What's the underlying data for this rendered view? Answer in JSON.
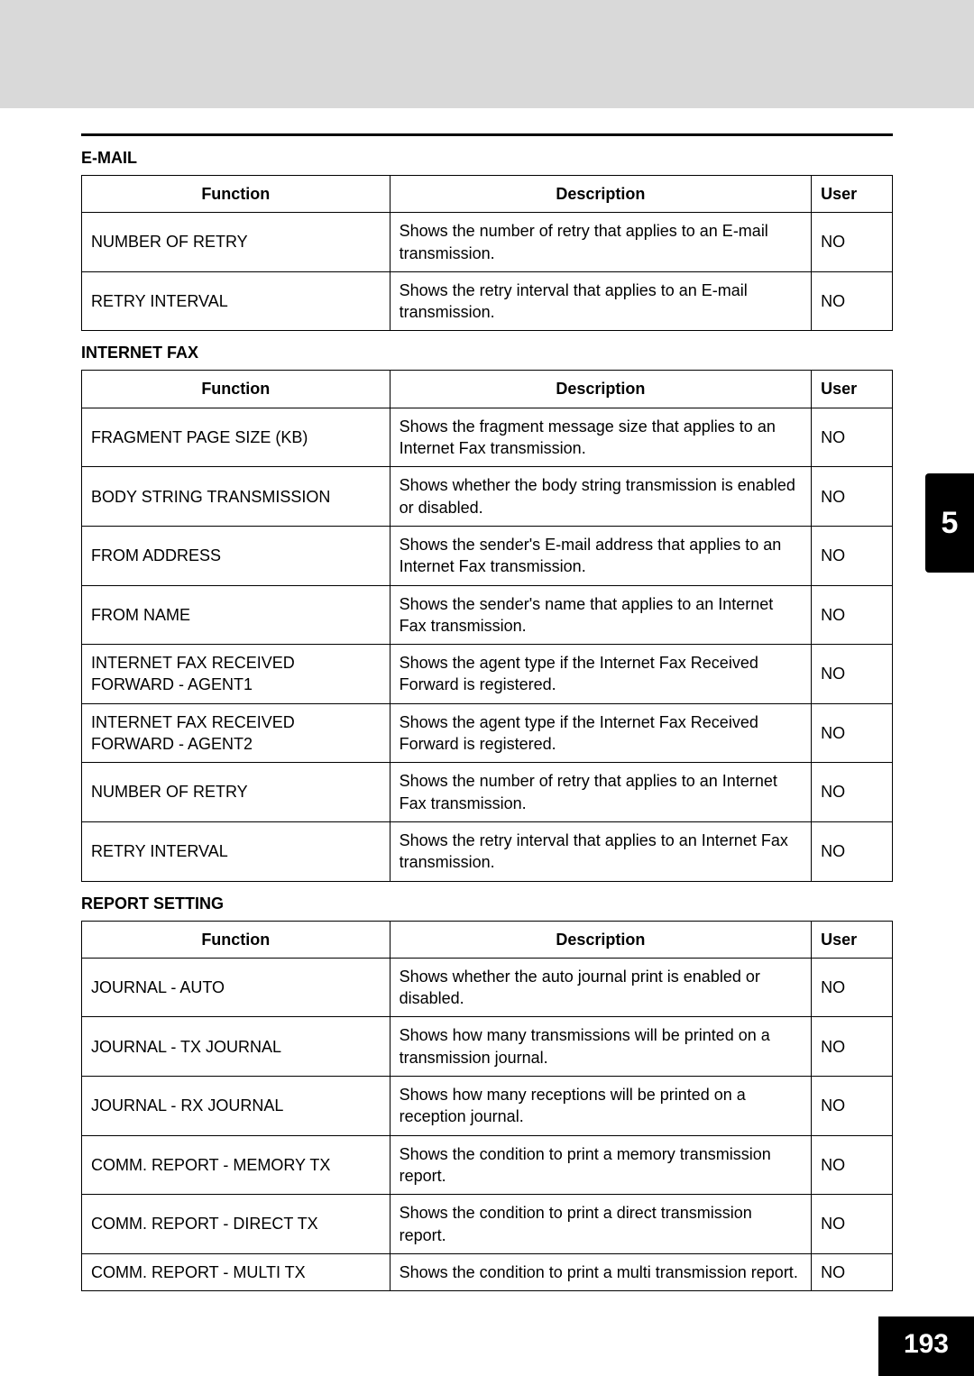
{
  "page": {
    "side_tab": "5",
    "page_number": "193"
  },
  "columns": {
    "function": "Function",
    "description": "Description",
    "user": "User"
  },
  "sections": [
    {
      "title": "E-MAIL",
      "rows": [
        {
          "function": "NUMBER OF RETRY",
          "description": "Shows the number of retry that applies to an E-mail transmission.",
          "user": "NO"
        },
        {
          "function": "RETRY INTERVAL",
          "description": "Shows the retry interval that applies to an E-mail transmission.",
          "user": "NO"
        }
      ]
    },
    {
      "title": "INTERNET FAX",
      "rows": [
        {
          "function": "FRAGMENT PAGE SIZE (KB)",
          "description": "Shows the fragment message size that applies to an Internet Fax transmission.",
          "user": "NO"
        },
        {
          "function": "BODY STRING TRANSMISSION",
          "description": "Shows whether the body string transmission is enabled or disabled.",
          "user": "NO"
        },
        {
          "function": "FROM ADDRESS",
          "description": "Shows the sender's E-mail address that applies to an Internet Fax transmission.",
          "user": "NO"
        },
        {
          "function": "FROM NAME",
          "description": "Shows the sender's name that applies to an Internet Fax transmission.",
          "user": "NO"
        },
        {
          "function": "INTERNET FAX RECEIVED FORWARD - AGENT1",
          "description": "Shows the agent type if the Internet Fax Received Forward is registered.",
          "user": "NO"
        },
        {
          "function": "INTERNET FAX RECEIVED FORWARD - AGENT2",
          "description": "Shows the agent type if the Internet Fax Received Forward is registered.",
          "user": "NO"
        },
        {
          "function": "NUMBER OF RETRY",
          "description": "Shows the number of retry that applies to an Internet Fax transmission.",
          "user": "NO"
        },
        {
          "function": "RETRY INTERVAL",
          "description": "Shows the retry interval that applies to an Internet Fax transmission.",
          "user": "NO"
        }
      ]
    },
    {
      "title": "REPORT SETTING",
      "rows": [
        {
          "function": "JOURNAL - AUTO",
          "description": "Shows whether the auto journal print is enabled or disabled.",
          "user": "NO"
        },
        {
          "function": "JOURNAL - TX JOURNAL",
          "description": "Shows how many transmissions will be printed on a transmission journal.",
          "user": "NO"
        },
        {
          "function": "JOURNAL - RX JOURNAL",
          "description": "Shows how many receptions will be printed on a reception journal.",
          "user": "NO"
        },
        {
          "function": "COMM. REPORT - MEMORY TX",
          "description": "Shows the condition to print a memory transmission report.",
          "user": "NO"
        },
        {
          "function": "COMM. REPORT - DIRECT TX",
          "description": "Shows the condition to print a direct transmission report.",
          "user": "NO"
        },
        {
          "function": "COMM. REPORT - MULTI TX",
          "description": "Shows the condition to print a multi transmission report.",
          "user": "NO"
        }
      ]
    }
  ]
}
